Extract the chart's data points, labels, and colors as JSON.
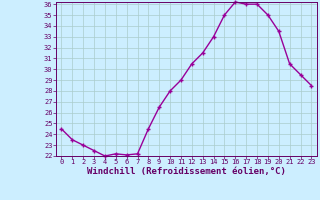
{
  "x": [
    0,
    1,
    2,
    3,
    4,
    5,
    6,
    7,
    8,
    9,
    10,
    11,
    12,
    13,
    14,
    15,
    16,
    17,
    18,
    19,
    20,
    21,
    22,
    23
  ],
  "y": [
    24.5,
    23.5,
    23.0,
    22.5,
    22.0,
    22.2,
    22.1,
    22.2,
    24.5,
    26.5,
    28.0,
    29.0,
    30.5,
    31.5,
    33.0,
    35.0,
    36.2,
    36.0,
    36.0,
    35.0,
    33.5,
    30.5,
    29.5,
    28.5
  ],
  "line_color": "#990099",
  "marker": "+",
  "marker_size": 3,
  "bg_color": "#cceeff",
  "grid_color": "#aacccc",
  "xlabel": "Windchill (Refroidissement éolien,°C)",
  "ylim": [
    22,
    36
  ],
  "xlim": [
    -0.5,
    23.5
  ],
  "yticks": [
    22,
    23,
    24,
    25,
    26,
    27,
    28,
    29,
    30,
    31,
    32,
    33,
    34,
    35,
    36
  ],
  "xticks": [
    0,
    1,
    2,
    3,
    4,
    5,
    6,
    7,
    8,
    9,
    10,
    11,
    12,
    13,
    14,
    15,
    16,
    17,
    18,
    19,
    20,
    21,
    22,
    23
  ],
  "tick_color": "#660066",
  "label_fontsize": 6.5,
  "tick_fontsize": 5,
  "line_width": 1.0,
  "marker_edge_width": 1.0
}
